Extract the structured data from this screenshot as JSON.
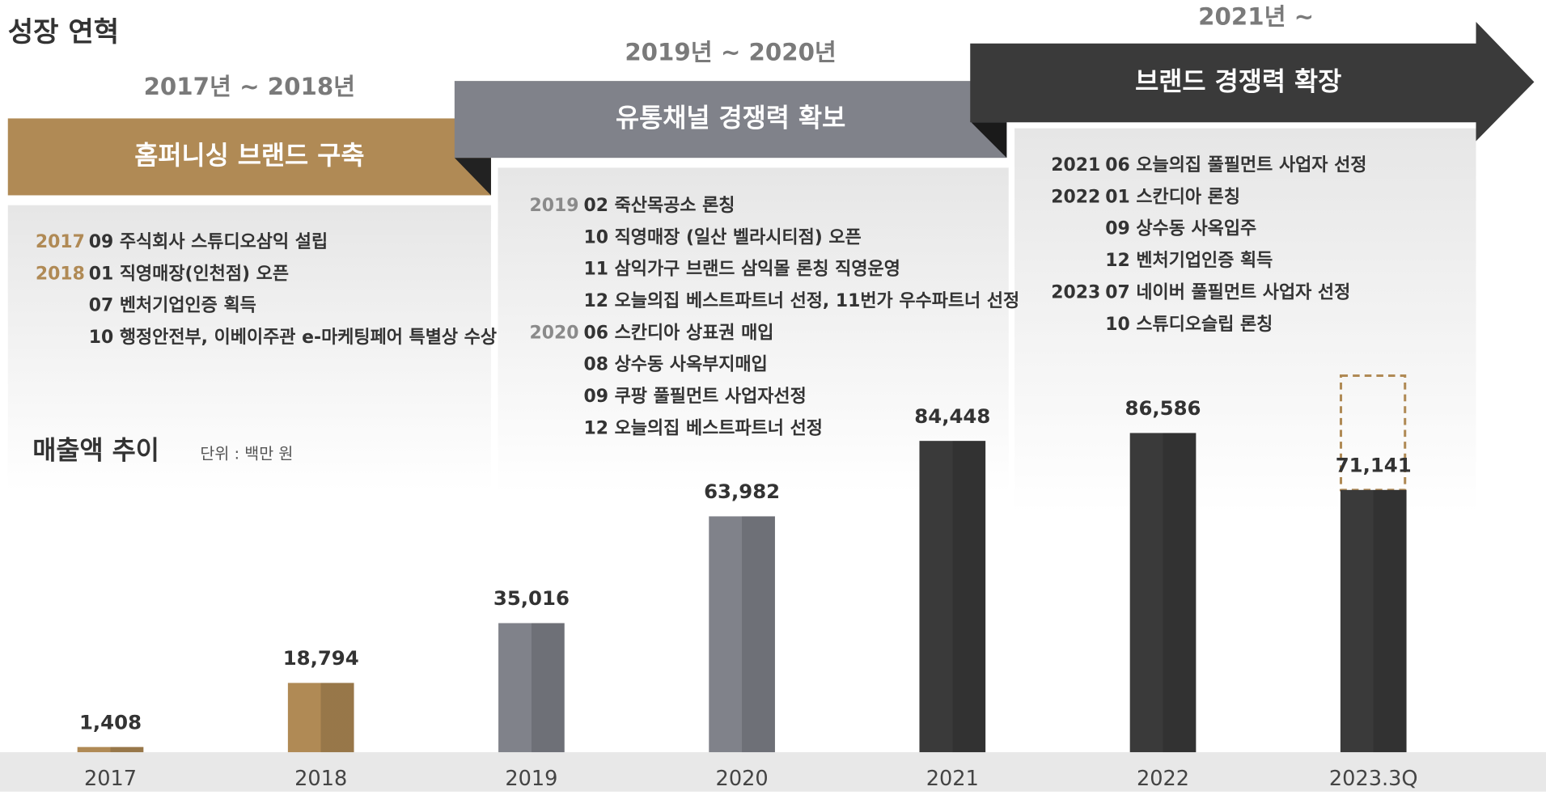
{
  "title": "성장 연혁",
  "phases": [
    {
      "period": "2017년 ~ 2018년",
      "title": "홈퍼니싱 브랜드 구축",
      "entries": [
        {
          "year": "2017",
          "items": [
            "09 주식회사 스튜디오삼익 설립"
          ]
        },
        {
          "year": "2018",
          "items": [
            "01  직영매장(인천점) 오픈",
            "07 벤처기업인증 획득",
            "10  행정안전부, 이베이주관 e-마케팅페어 특별상 수상"
          ]
        }
      ]
    },
    {
      "period": "2019년 ~ 2020년",
      "title": "유통채널 경쟁력 확보",
      "entries": [
        {
          "year": "2019",
          "items": [
            "02 죽산목공소 론칭",
            "10  직영매장 (일산 벨라시티점) 오픈",
            "11   삼익가구 브랜드 삼익몰 론칭 직영운영",
            "12  오늘의집 베스트파트너 선정, 11번가 우수파트너 선정"
          ]
        },
        {
          "year": "2020",
          "items": [
            "06 스칸디아 상표권 매입",
            "08 상수동 사옥부지매입",
            "09 쿠팡 풀필먼트 사업자선정",
            "12  오늘의집 베스트파트너 선정"
          ]
        }
      ]
    },
    {
      "period": "2021년 ~",
      "title": "브랜드 경쟁력 확장",
      "entries": [
        {
          "year": "2021",
          "items": [
            "06 오늘의집 풀필먼트 사업자 선정"
          ]
        },
        {
          "year": "2022",
          "items": [
            "01  스칸디아 론칭",
            "09 상수동 사옥입주",
            "12 벤처기업인증 획득"
          ]
        },
        {
          "year": "2023",
          "items": [
            "07 네이버 풀필먼트 사업자 선정",
            "10 스튜디오슬립 론칭"
          ]
        }
      ]
    }
  ],
  "chart_data": {
    "type": "bar",
    "title": "매출액 추이",
    "unit": "단위 : 백만 원",
    "categories": [
      "2017",
      "2018",
      "2019",
      "2020",
      "2021",
      "2022",
      "2023.3Q"
    ],
    "values": [
      1408,
      18794,
      35016,
      63982,
      84448,
      86586,
      71141
    ],
    "value_labels": [
      "1,408",
      "18,794",
      "35,016",
      "63,982",
      "84,448",
      "86,586",
      "71,141"
    ],
    "colors": [
      "#b08a55",
      "#b08a55",
      "#80828a",
      "#80828a",
      "#3a3a3a",
      "#3a3a3a",
      "#3a3a3a"
    ],
    "ylim": [
      0,
      100000
    ]
  }
}
